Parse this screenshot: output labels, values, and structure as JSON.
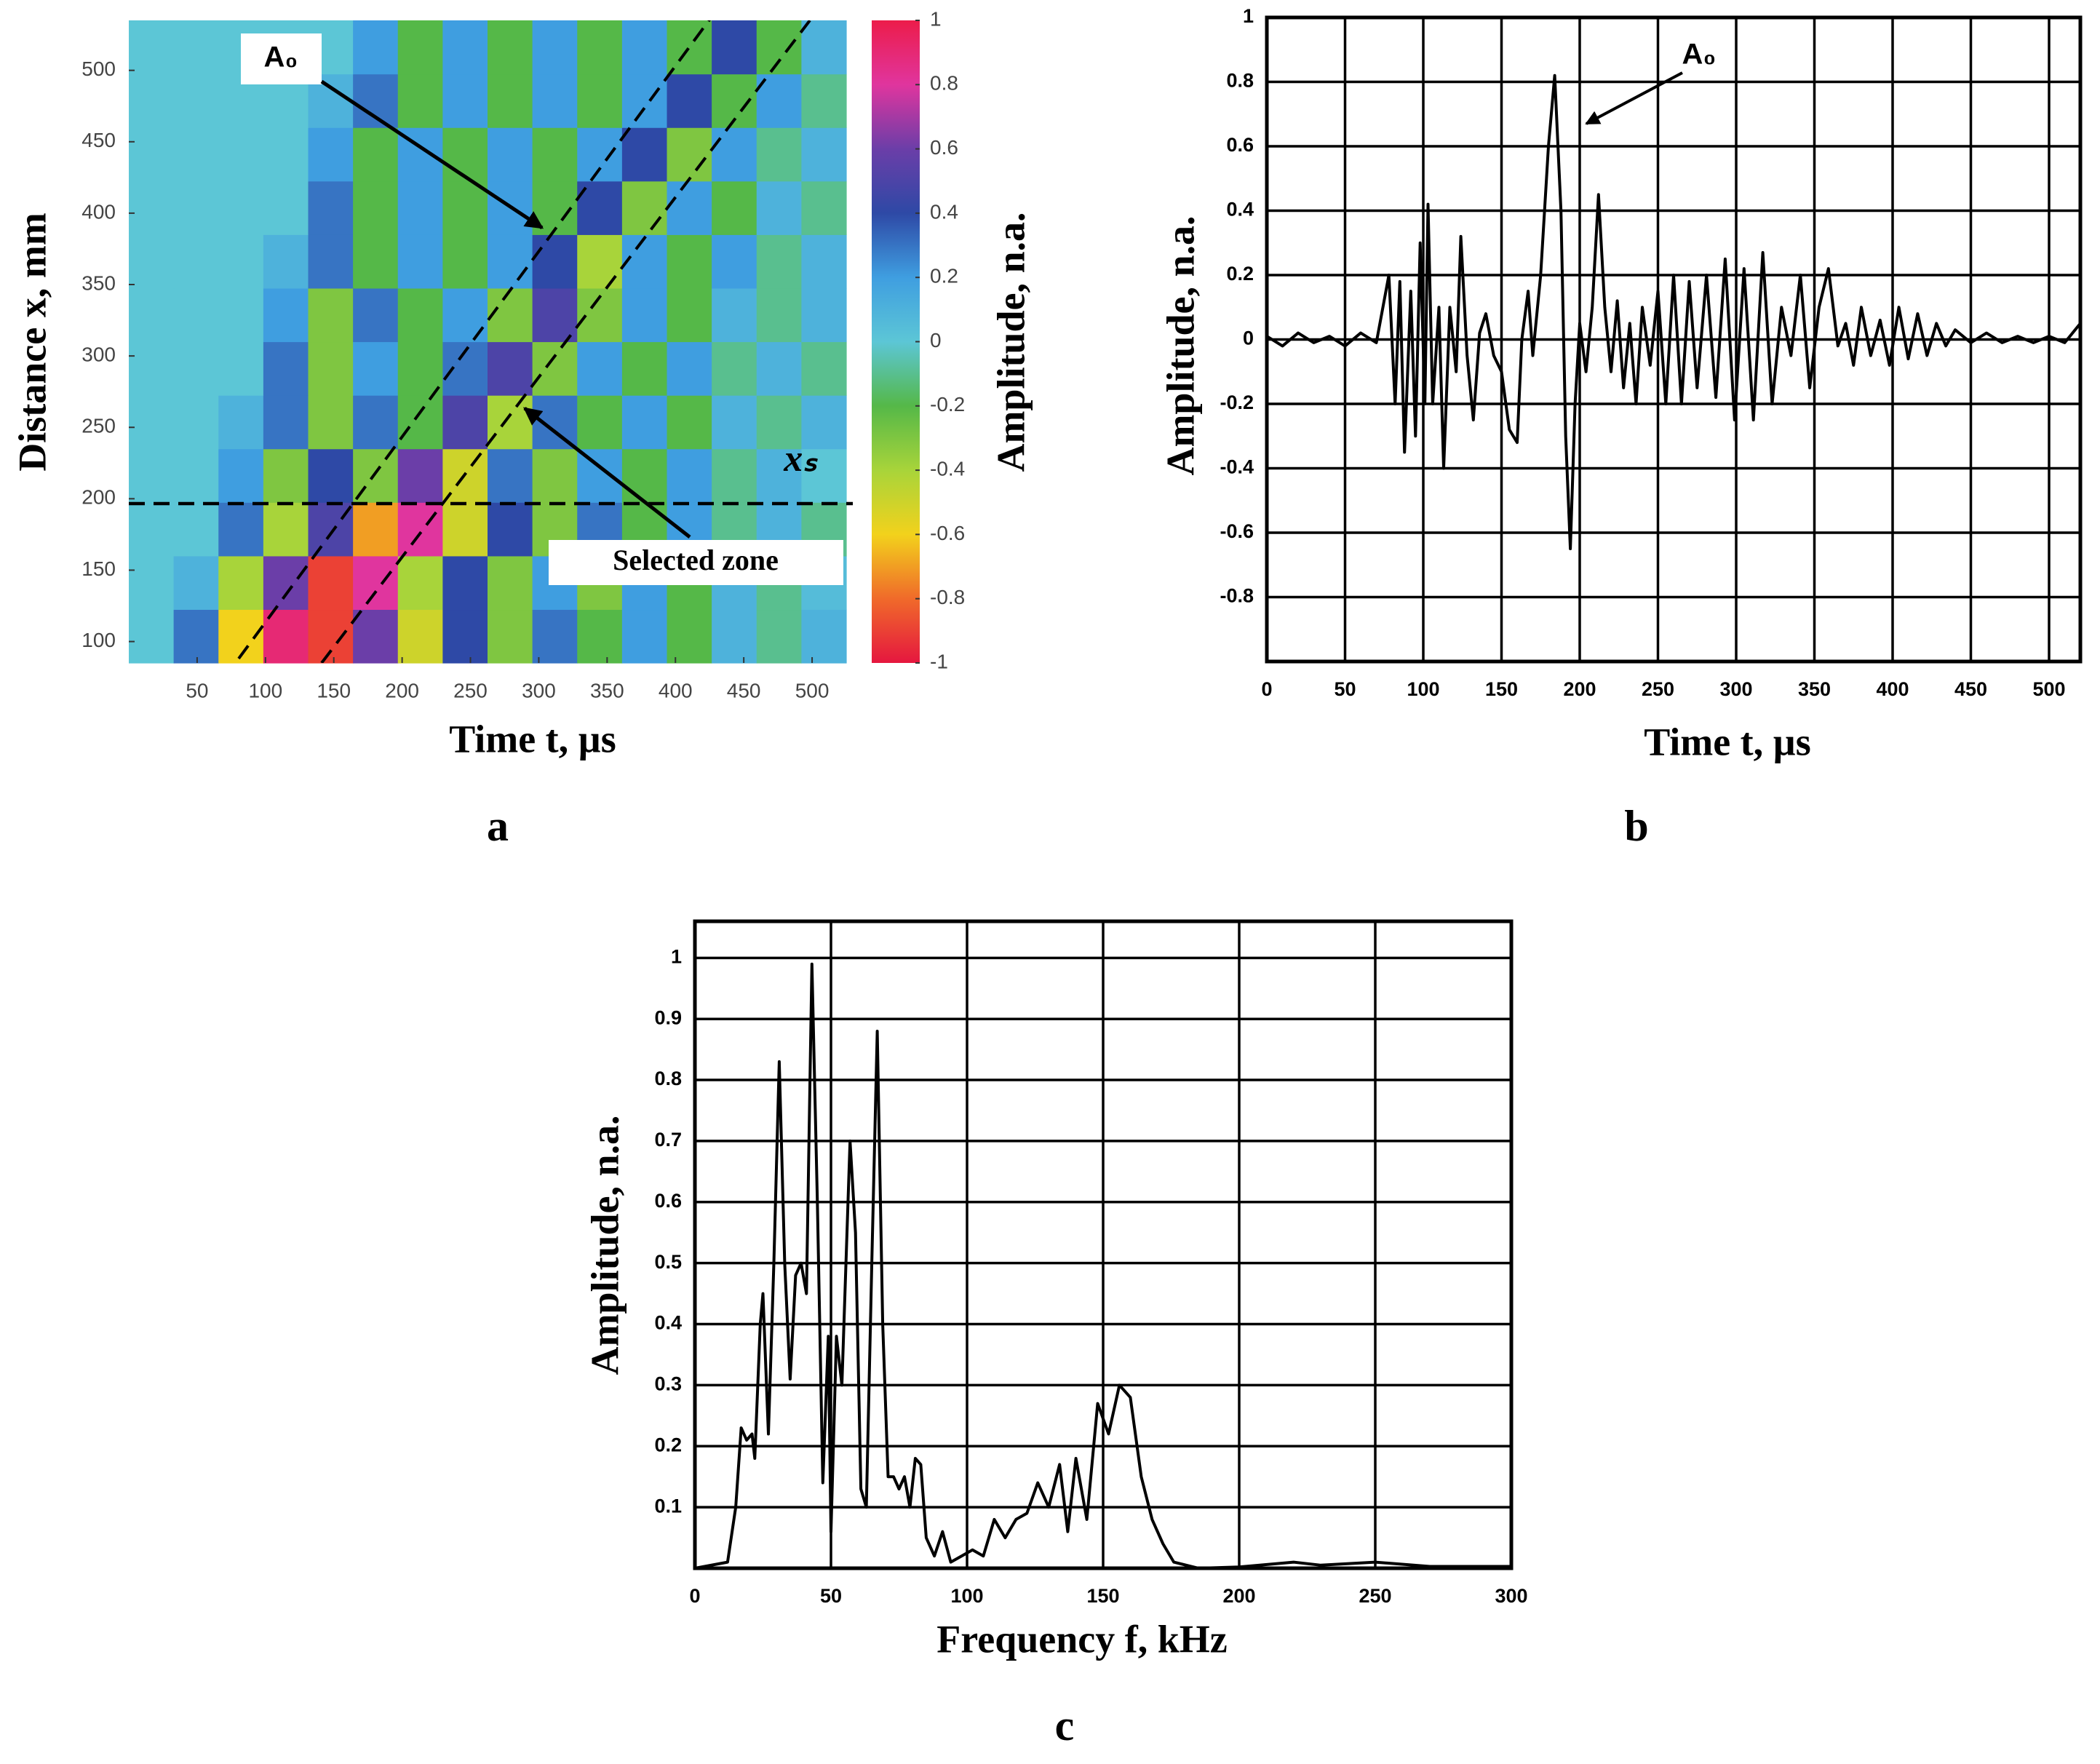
{
  "chart_data": [
    {
      "type": "heatmap",
      "panel_label": "a",
      "x_label": "Time t, µs",
      "y_label": "Distance x, mm",
      "colorbar_label": "Amplitude, n.a.",
      "annotations": [
        "A₀",
        "Selected zone",
        "xₛ"
      ],
      "xlim": [
        0,
        525
      ],
      "ylim": [
        85,
        535
      ],
      "xticks": [
        50,
        100,
        150,
        200,
        250,
        300,
        350,
        400,
        450,
        500
      ],
      "yticks": [
        100,
        150,
        200,
        250,
        300,
        350,
        400,
        450,
        500
      ],
      "zlim": [
        -1,
        1
      ],
      "colorbar_ticks": [
        -1,
        -0.8,
        -0.6,
        -0.4,
        -0.2,
        0,
        0.2,
        0.4,
        0.6,
        0.8,
        1
      ],
      "colorscale": [
        "#e5173f",
        "#f06a2a",
        "#f2d21c",
        "#a8d43a",
        "#55b848",
        "#5cc6d6",
        "#3f9ee0",
        "#2e49a6",
        "#6b3ea8",
        "#e0359e",
        "#ec1c4a"
      ],
      "z": [
        [
          0,
          0.3,
          -0.6,
          0.9,
          -0.9,
          0.6,
          -0.5,
          0.4,
          -0.3,
          0.3,
          -0.2,
          0.2,
          -0.2,
          0.1,
          -0.1,
          0.1
        ],
        [
          0,
          0.1,
          -0.4,
          0.6,
          -0.9,
          0.8,
          -0.4,
          0.4,
          -0.3,
          0.2,
          -0.3,
          0.2,
          -0.2,
          0.1,
          -0.1,
          0.05
        ],
        [
          0,
          0,
          0.3,
          -0.4,
          0.5,
          -0.7,
          0.8,
          -0.5,
          0.4,
          -0.3,
          0.3,
          -0.2,
          0.2,
          -0.1,
          0.1,
          -0.1
        ],
        [
          0,
          0,
          0.2,
          -0.3,
          0.4,
          -0.3,
          0.6,
          -0.5,
          0.3,
          -0.3,
          0.2,
          -0.2,
          0.2,
          -0.1,
          0.1,
          0
        ],
        [
          0,
          0,
          0.1,
          0.3,
          -0.3,
          0.3,
          -0.2,
          0.5,
          -0.4,
          0.3,
          -0.2,
          0.2,
          -0.2,
          0.1,
          -0.1,
          0.1
        ],
        [
          0,
          0,
          0,
          0.3,
          -0.3,
          0.2,
          -0.2,
          0.3,
          0.5,
          -0.3,
          0.2,
          -0.2,
          0.2,
          -0.1,
          0.1,
          -0.1
        ],
        [
          0,
          0,
          0,
          0.2,
          -0.3,
          0.3,
          -0.2,
          0.2,
          -0.3,
          0.5,
          -0.3,
          0.2,
          -0.2,
          0.1,
          -0.1,
          0.1
        ],
        [
          0,
          0,
          0,
          0.1,
          0.3,
          -0.2,
          0.2,
          -0.2,
          0.2,
          0.4,
          -0.4,
          0.2,
          -0.2,
          0.2,
          -0.1,
          0.1
        ],
        [
          0,
          0,
          0,
          0,
          0.3,
          -0.2,
          0.2,
          -0.2,
          0.2,
          -0.2,
          0.4,
          -0.3,
          0.2,
          -0.2,
          0.1,
          -0.1
        ],
        [
          0,
          0,
          0,
          0,
          0.2,
          -0.2,
          0.2,
          -0.2,
          0.2,
          -0.2,
          0.2,
          0.4,
          -0.3,
          0.2,
          -0.1,
          0.1
        ],
        [
          0,
          0,
          0,
          0,
          0.1,
          0.3,
          -0.2,
          0.2,
          -0.2,
          0.2,
          -0.2,
          0.2,
          0.4,
          -0.2,
          0.2,
          -0.1
        ],
        [
          0,
          0,
          0,
          0,
          0,
          0.2,
          -0.2,
          0.2,
          -0.2,
          0.2,
          -0.2,
          0.2,
          -0.2,
          0.4,
          -0.2,
          0.1
        ]
      ]
    },
    {
      "type": "line",
      "panel_label": "b",
      "x_label": "Time t, µs",
      "y_label": "Amplitude, n.a.",
      "annotations": [
        "A₀"
      ],
      "color": "#000000",
      "grid": true,
      "xlim": [
        0,
        520
      ],
      "ylim": [
        -1,
        1
      ],
      "xticks": [
        0,
        50,
        100,
        150,
        200,
        250,
        300,
        350,
        400,
        450,
        500
      ],
      "yticks": [
        -0.8,
        -0.6,
        -0.4,
        -0.2,
        0,
        0.2,
        0.4,
        0.6,
        0.8,
        1
      ],
      "x": [
        0,
        10,
        20,
        30,
        40,
        50,
        60,
        70,
        78,
        82,
        85,
        88,
        92,
        95,
        98,
        101,
        103,
        106,
        110,
        113,
        117,
        121,
        124,
        128,
        132,
        136,
        140,
        145,
        150,
        155,
        160,
        163,
        167,
        170,
        175,
        180,
        184,
        188,
        191,
        194,
        197,
        200,
        204,
        208,
        212,
        216,
        220,
        224,
        228,
        232,
        236,
        240,
        245,
        250,
        255,
        260,
        265,
        270,
        275,
        281,
        287,
        293,
        299,
        305,
        311,
        317,
        323,
        329,
        335,
        341,
        347,
        353,
        359,
        365,
        370,
        375,
        380,
        386,
        392,
        398,
        404,
        410,
        416,
        422,
        428,
        434,
        440,
        450,
        460,
        470,
        480,
        490,
        500,
        510,
        520
      ],
      "values": [
        0.01,
        -0.02,
        0.02,
        -0.01,
        0.01,
        -0.02,
        0.02,
        -0.01,
        0.2,
        -0.2,
        0.18,
        -0.35,
        0.15,
        -0.3,
        0.3,
        -0.2,
        0.42,
        -0.2,
        0.1,
        -0.4,
        0.1,
        -0.1,
        0.32,
        -0.05,
        -0.25,
        0.02,
        0.08,
        -0.05,
        -0.1,
        -0.28,
        -0.32,
        0,
        0.15,
        -0.05,
        0.2,
        0.6,
        0.82,
        0.4,
        -0.3,
        -0.65,
        -0.2,
        0.05,
        -0.1,
        0.1,
        0.45,
        0.1,
        -0.1,
        0.12,
        -0.15,
        0.05,
        -0.2,
        0.1,
        -0.08,
        0.15,
        -0.2,
        0.2,
        -0.2,
        0.18,
        -0.15,
        0.2,
        -0.18,
        0.25,
        -0.25,
        0.22,
        -0.25,
        0.27,
        -0.2,
        0.1,
        -0.05,
        0.2,
        -0.15,
        0.1,
        0.22,
        -0.02,
        0.05,
        -0.08,
        0.1,
        -0.05,
        0.06,
        -0.08,
        0.1,
        -0.06,
        0.08,
        -0.05,
        0.05,
        -0.02,
        0.03,
        -0.01,
        0.02,
        -0.01,
        0.01,
        -0.01,
        0.01,
        -0.01,
        0.05
      ]
    },
    {
      "type": "line",
      "panel_label": "c",
      "x_label": "Frequency f, kHz",
      "y_label": "Amplitude, n.a.",
      "color": "#000000",
      "grid": true,
      "xlim": [
        0,
        300
      ],
      "ylim": [
        0,
        1.06
      ],
      "xticks": [
        0,
        50,
        100,
        150,
        200,
        250,
        300
      ],
      "yticks": [
        0.1,
        0.2,
        0.3,
        0.4,
        0.5,
        0.6,
        0.7,
        0.8,
        0.9,
        1
      ],
      "x": [
        0,
        12,
        15,
        17,
        19,
        21,
        22,
        24,
        25,
        27,
        29,
        31,
        33,
        35,
        37,
        39,
        41,
        43,
        45,
        47,
        49,
        50,
        52,
        54,
        57,
        59,
        61,
        63,
        65,
        67,
        69,
        71,
        73,
        75,
        77,
        79,
        81,
        83,
        85,
        88,
        91,
        94,
        98,
        102,
        106,
        110,
        114,
        118,
        122,
        126,
        130,
        134,
        137,
        140,
        144,
        148,
        152,
        156,
        160,
        164,
        168,
        172,
        176,
        185,
        200,
        220,
        230,
        250,
        270,
        300
      ],
      "values": [
        0,
        0.01,
        0.1,
        0.23,
        0.21,
        0.22,
        0.18,
        0.4,
        0.45,
        0.22,
        0.5,
        0.83,
        0.5,
        0.31,
        0.48,
        0.5,
        0.45,
        0.99,
        0.6,
        0.14,
        0.38,
        0.06,
        0.38,
        0.3,
        0.7,
        0.55,
        0.13,
        0.1,
        0.5,
        0.88,
        0.4,
        0.15,
        0.15,
        0.13,
        0.15,
        0.1,
        0.18,
        0.17,
        0.05,
        0.02,
        0.06,
        0.01,
        0.02,
        0.03,
        0.02,
        0.08,
        0.05,
        0.08,
        0.09,
        0.14,
        0.1,
        0.17,
        0.06,
        0.18,
        0.08,
        0.27,
        0.22,
        0.3,
        0.28,
        0.15,
        0.08,
        0.04,
        0.01,
        0,
        0.002,
        0.01,
        0.005,
        0.01,
        0.003,
        0.003
      ]
    }
  ]
}
